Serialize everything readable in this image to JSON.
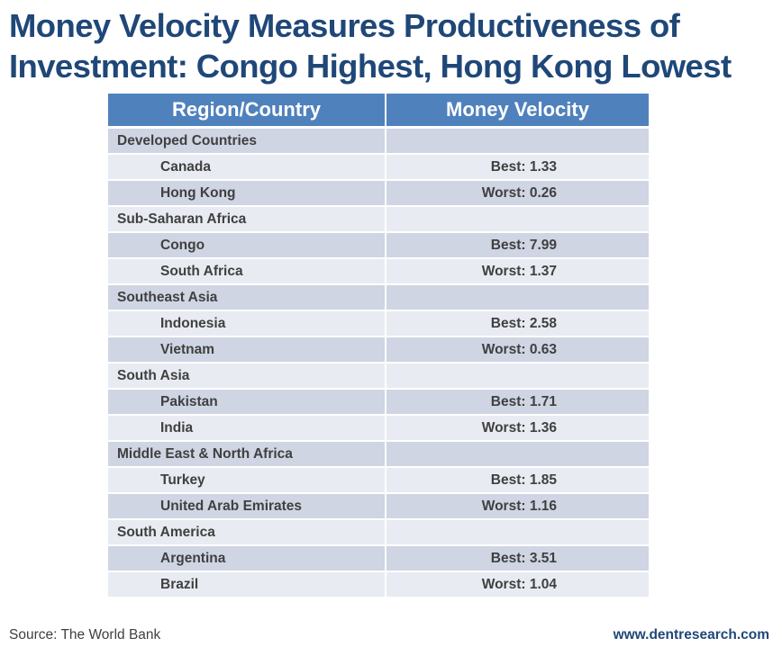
{
  "title": {
    "line1": "Money Velocity Measures Productiveness of",
    "line2": "Investment: Congo Highest, Hong Kong Lowest"
  },
  "table": {
    "headers": [
      "Region/Country",
      "Money Velocity"
    ],
    "header_color": "#4f81bd",
    "row_dark_color": "#cfd5e3",
    "row_light_color": "#e8ebf2"
  },
  "chart_data": {
    "type": "table",
    "title": "Money Velocity Measures Productiveness of Investment: Congo Highest, Hong Kong Lowest",
    "columns": [
      "Region/Country",
      "Money Velocity"
    ],
    "rows": [
      {
        "kind": "region",
        "name": "Developed Countries",
        "value": ""
      },
      {
        "kind": "country",
        "name": "Canada",
        "value": "Best: 1.33",
        "label": "Best",
        "velocity": 1.33
      },
      {
        "kind": "country",
        "name": "Hong Kong",
        "value": "Worst: 0.26",
        "label": "Worst",
        "velocity": 0.26
      },
      {
        "kind": "region",
        "name": "Sub-Saharan Africa",
        "value": ""
      },
      {
        "kind": "country",
        "name": "Congo",
        "value": "Best: 7.99",
        "label": "Best",
        "velocity": 7.99
      },
      {
        "kind": "country",
        "name": "South Africa",
        "value": "Worst: 1.37",
        "label": "Worst",
        "velocity": 1.37
      },
      {
        "kind": "region",
        "name": "Southeast Asia",
        "value": ""
      },
      {
        "kind": "country",
        "name": "Indonesia",
        "value": "Best: 2.58",
        "label": "Best",
        "velocity": 2.58
      },
      {
        "kind": "country",
        "name": "Vietnam",
        "value": "Worst: 0.63",
        "label": "Worst",
        "velocity": 0.63
      },
      {
        "kind": "region",
        "name": "South Asia",
        "value": ""
      },
      {
        "kind": "country",
        "name": "Pakistan",
        "value": "Best: 1.71",
        "label": "Best",
        "velocity": 1.71
      },
      {
        "kind": "country",
        "name": "India",
        "value": "Worst: 1.36",
        "label": "Worst",
        "velocity": 1.36
      },
      {
        "kind": "region",
        "name": "Middle East & North Africa",
        "value": ""
      },
      {
        "kind": "country",
        "name": "Turkey",
        "value": "Best: 1.85",
        "label": "Best",
        "velocity": 1.85
      },
      {
        "kind": "country",
        "name": "United Arab Emirates",
        "value": "Worst: 1.16",
        "label": "Worst",
        "velocity": 1.16
      },
      {
        "kind": "region",
        "name": "South America",
        "value": ""
      },
      {
        "kind": "country",
        "name": "Argentina",
        "value": "Best: 3.51",
        "label": "Best",
        "velocity": 3.51
      },
      {
        "kind": "country",
        "name": "Brazil",
        "value": "Worst: 1.04",
        "label": "Worst",
        "velocity": 1.04
      }
    ]
  },
  "footer": {
    "source": "Source: The World Bank",
    "website": "www.dentresearch.com"
  }
}
